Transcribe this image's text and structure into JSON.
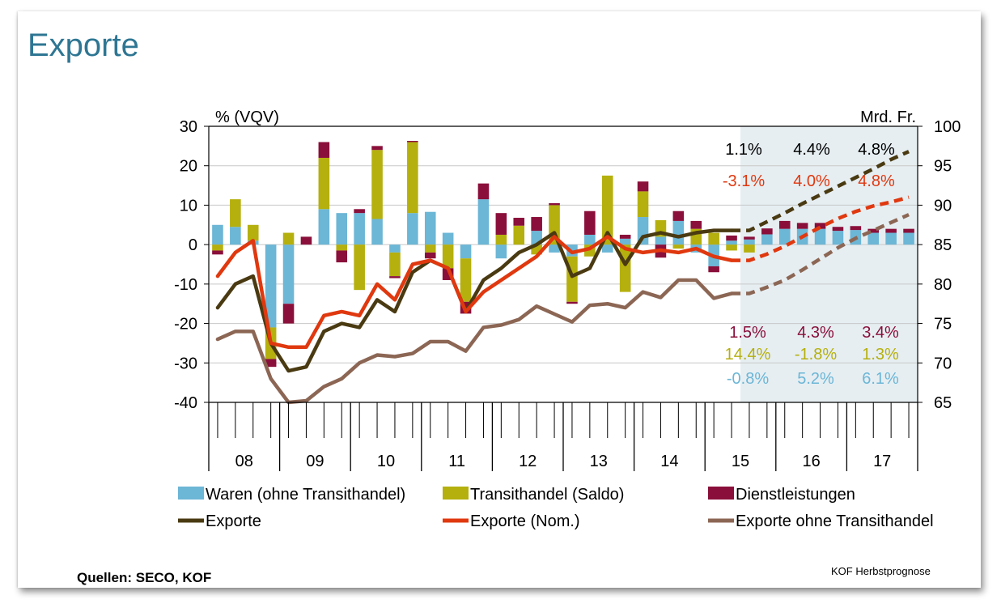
{
  "slide": {
    "title": "Exporte",
    "source": "Quellen: SECO, KOF",
    "footnote": "KOF Herbstprognose"
  },
  "chart_data": {
    "type": "bar",
    "left_axis": {
      "label": "% (VQV)",
      "range": [
        -40,
        30
      ],
      "ticks": [
        "30",
        "20",
        "10",
        "0",
        "-10",
        "-20",
        "-30",
        "-40"
      ]
    },
    "right_axis": {
      "label": "Mrd. Fr.",
      "range": [
        65,
        100
      ],
      "ticks": [
        "100",
        "95",
        "90",
        "85",
        "80",
        "75",
        "70",
        "65"
      ]
    },
    "years": [
      "08",
      "09",
      "10",
      "11",
      "12",
      "13",
      "14",
      "15",
      "16",
      "17"
    ],
    "quarters_per_year": 4,
    "forecast_start_index": 30,
    "grid": true,
    "legend_position": "bottom",
    "bar_series": [
      {
        "name": "Waren (ohne Transithandel)",
        "color": "#6cb6d6",
        "values": [
          5,
          4.5,
          1,
          -21,
          -15,
          0,
          9,
          8,
          8,
          6.5,
          -2,
          8,
          8.3,
          3,
          -3.5,
          11.5,
          -3.5,
          0,
          3.5,
          -2,
          -3,
          2.5,
          -2,
          1.5,
          7,
          2,
          6,
          -2,
          -5.5,
          1,
          1.3,
          2.6,
          4,
          4,
          4,
          3.5,
          3.7,
          3,
          3,
          3
        ]
      },
      {
        "name": "Transithandel (Saldo)",
        "color": "#b5b00d",
        "values": [
          -1.5,
          7,
          4,
          -8,
          3,
          0,
          13,
          -1.5,
          -11.5,
          17.5,
          -6,
          18,
          -2,
          -6,
          -11,
          0,
          2.5,
          4.8,
          -2.5,
          10,
          -11.5,
          -3,
          17.5,
          -12,
          6.5,
          4.2,
          -1,
          4,
          3,
          -1.5,
          -2,
          0,
          0,
          0,
          0,
          0,
          0,
          0,
          0,
          0
        ]
      },
      {
        "name": "Dienstleistungen",
        "color": "#8a0f3a",
        "values": [
          -1,
          0,
          0,
          -2,
          -5,
          2,
          4,
          -3,
          1,
          1,
          -0.5,
          0.3,
          -1.5,
          -3,
          -3,
          4,
          5.5,
          2,
          3.5,
          0.5,
          -0.5,
          6,
          0,
          1,
          2.5,
          -3.3,
          2.5,
          2,
          -1.5,
          1.3,
          0.7,
          1.5,
          2,
          1.5,
          1.5,
          1,
          1,
          1,
          1,
          1
        ]
      }
    ],
    "line_series": [
      {
        "name": "Exporte",
        "color": "#4a3a12",
        "axis": "right",
        "values": [
          77,
          80,
          81,
          72.5,
          69,
          69.5,
          74,
          75,
          74.5,
          78,
          76.5,
          81.5,
          83,
          82,
          76.5,
          80.5,
          82,
          84,
          85,
          86.5,
          81,
          82,
          86.5,
          82.5,
          86,
          86.5,
          86,
          86.5,
          86.8,
          86.8,
          86.8,
          87.9,
          89,
          90.2,
          91.3,
          92.4,
          93.5,
          94.6,
          95.8,
          96.8
        ]
      },
      {
        "name": "Exporte (Nom.)",
        "color": "#e0380f",
        "axis": "right",
        "values": [
          81,
          84,
          85.5,
          72.5,
          72,
          72,
          76,
          76.5,
          76,
          80,
          78,
          82.5,
          83,
          82,
          76.5,
          79,
          80.5,
          82,
          83.5,
          86,
          84,
          84.5,
          86,
          84.5,
          84,
          84.3,
          84,
          84.5,
          83.5,
          83,
          83,
          83.8,
          84.8,
          86,
          87.2,
          88.3,
          89.2,
          89.9,
          90.4,
          91
        ]
      },
      {
        "name": "Exporte ohne Transithandel",
        "color": "#8c6654",
        "axis": "right",
        "values": [
          73,
          74,
          74,
          68,
          65,
          65.2,
          67,
          68,
          70,
          71,
          70.8,
          71.2,
          72.7,
          72.7,
          71.5,
          74.5,
          74.8,
          75.5,
          77.2,
          76.2,
          75.2,
          77.3,
          77.5,
          77,
          79,
          78.3,
          80.5,
          80.5,
          78.2,
          78.8,
          78.8,
          79.6,
          80.5,
          81.8,
          83.2,
          84.6,
          85.8,
          86.8,
          87.8,
          88.8
        ]
      }
    ],
    "annotations": {
      "top": [
        {
          "color": "#000000",
          "values": [
            "1.1%",
            "4.4%",
            "4.8%"
          ]
        },
        {
          "color": "#e0380f",
          "values": [
            "-3.1%",
            "4.0%",
            "4.8%"
          ]
        }
      ],
      "bottom": [
        {
          "color": "#8a0f3a",
          "values": [
            "1.5%",
            "4.3%",
            "3.4%"
          ]
        },
        {
          "color": "#b5b00d",
          "values": [
            "14.4%",
            "-1.8%",
            "1.3%"
          ]
        },
        {
          "color": "#6cb6d6",
          "values": [
            "-0.8%",
            "5.2%",
            "6.1%"
          ]
        }
      ]
    }
  }
}
